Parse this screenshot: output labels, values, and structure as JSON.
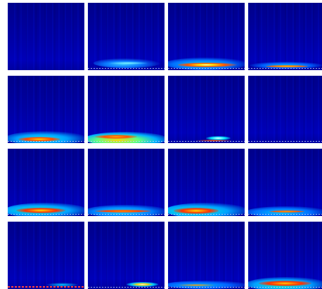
{
  "image": {
    "rows": 4,
    "columns": 4,
    "panels": [
      {
        "id": "r1c1",
        "intensity": 0.0,
        "peak_color": "#0000a8"
      },
      {
        "id": "r1c2",
        "intensity": 0.35,
        "peak_color": "#1e90ff"
      },
      {
        "id": "r1c3",
        "intensity": 0.9,
        "peak_color": "#ff3000"
      },
      {
        "id": "r1c4",
        "intensity": 0.5,
        "peak_color": "#ff8c00"
      },
      {
        "id": "r2c1",
        "intensity": 0.75,
        "peak_color": "#ff5a00"
      },
      {
        "id": "r2c2",
        "intensity": 0.7,
        "peak_color": "#ffa000"
      },
      {
        "id": "r2c3",
        "intensity": 0.45,
        "peak_color": "#ffffff"
      },
      {
        "id": "r2c4",
        "intensity": 0.05,
        "peak_color": "#1a6cff"
      },
      {
        "id": "r3c1",
        "intensity": 0.95,
        "peak_color": "#ff2a00"
      },
      {
        "id": "r3c2",
        "intensity": 0.6,
        "peak_color": "#ff7a00"
      },
      {
        "id": "r3c3",
        "intensity": 0.85,
        "peak_color": "#ff3a00"
      },
      {
        "id": "r3c4",
        "intensity": 0.45,
        "peak_color": "#ff9a00"
      },
      {
        "id": "r4c1",
        "intensity": 0.25,
        "peak_color": "#ff2020"
      },
      {
        "id": "r4c2",
        "intensity": 0.45,
        "peak_color": "#ffd000"
      },
      {
        "id": "r4c3",
        "intensity": 0.4,
        "peak_color": "#ff7000"
      },
      {
        "id": "r4c4",
        "intensity": 0.8,
        "peak_color": "#ff2a00"
      }
    ]
  }
}
